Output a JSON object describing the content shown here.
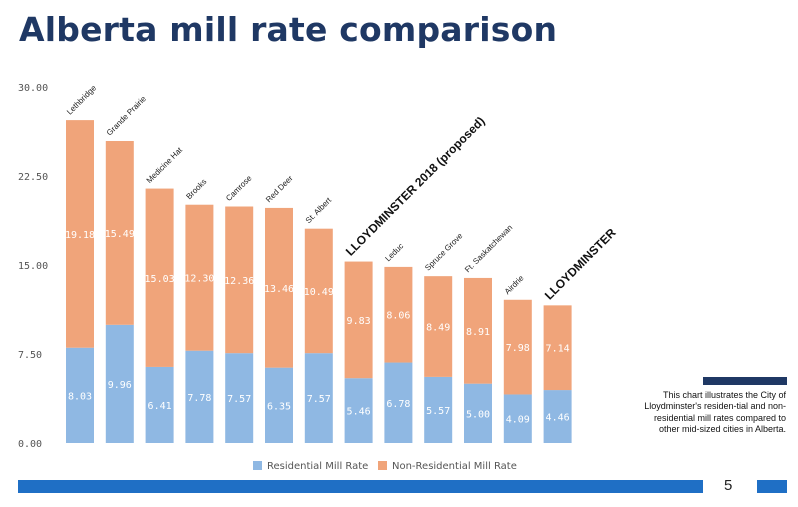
{
  "title": "Alberta mill rate comparison",
  "chart_data": {
    "type": "bar",
    "stacked": true,
    "categories": [
      "Lethbridge",
      "Grande Prairie",
      "Medicine Hat",
      "Brooks",
      "Camrose",
      "Red Deer",
      "St. Albert",
      "LLOYDMINSTER 2018 (proposed)",
      "Leduc",
      "Spruce Grove",
      "Ft. Saskatchewan",
      "Airdrie",
      "LLOYDMINSTER"
    ],
    "series": [
      {
        "name": "Residential Mill Rate",
        "color": "#8fb8e3",
        "values": [
          8.03,
          9.96,
          6.41,
          7.78,
          7.57,
          6.35,
          7.57,
          5.46,
          6.78,
          5.57,
          5.0,
          4.09,
          4.46
        ]
      },
      {
        "name": "Non-Residential Mill Rate",
        "color": "#f0a47a",
        "values": [
          19.18,
          15.49,
          15.03,
          12.3,
          12.36,
          13.46,
          10.49,
          9.83,
          8.06,
          8.49,
          8.91,
          7.98,
          7.14
        ]
      }
    ],
    "value_labels": {
      "residential": [
        "8.03",
        "9.96",
        "6.41",
        "7.78",
        "7.57",
        "6.35",
        "7.57",
        "5.46",
        "6.78",
        "5.57",
        "5.00",
        "4.09",
        "4.46"
      ],
      "non_residential": [
        "19.18",
        "15.49",
        "15.03",
        "12.30",
        "12.36",
        "13.46",
        "10.49",
        "9.83",
        "8.06",
        "8.49",
        "8.91",
        "7.98",
        "7.14"
      ]
    },
    "y_ticks": [
      "0.00",
      "7.50",
      "15.00",
      "22.50",
      "30.00"
    ],
    "ylim": [
      0,
      30
    ],
    "highlighted_categories": [
      "LLOYDMINSTER 2018 (proposed)",
      "LLOYDMINSTER"
    ],
    "legend_position": "bottom",
    "grid": false
  },
  "note": "This chart illustrates the City of Lloydminster's residen-tial and non-residential mill rates compared to other mid-sized cities in Alberta.",
  "page_number": "5"
}
